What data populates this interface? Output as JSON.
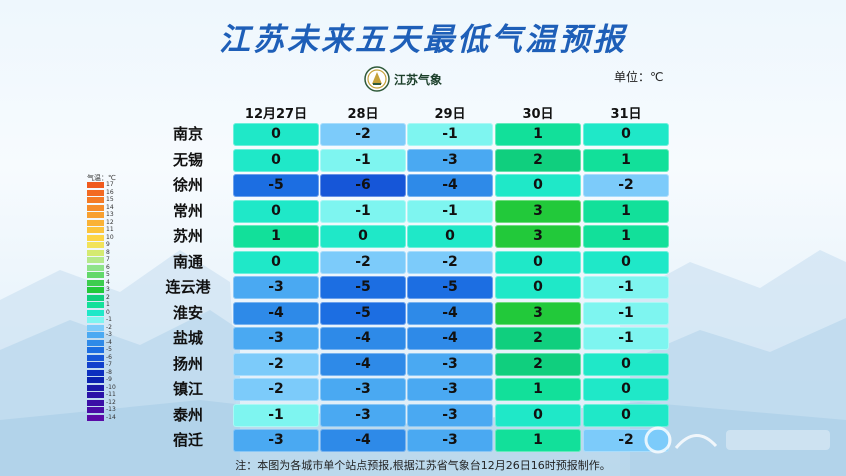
{
  "title": "江苏未来五天最低气温预报",
  "logo_text": "江苏气象",
  "unit_text": "单位：℃",
  "note": "注：本图为各城市单个站点预报,根据江苏省气象台12月26日16时预报制作。",
  "legend": {
    "title": "气温：℃",
    "items": [
      {
        "label": "17",
        "color": "#f05a1e"
      },
      {
        "label": "16",
        "color": "#f36a22"
      },
      {
        "label": "15",
        "color": "#f47b26"
      },
      {
        "label": "14",
        "color": "#f68d2b"
      },
      {
        "label": "13",
        "color": "#f8a030"
      },
      {
        "label": "12",
        "color": "#fab236"
      },
      {
        "label": "11",
        "color": "#fcc43c"
      },
      {
        "label": "10",
        "color": "#fdd546"
      },
      {
        "label": "9",
        "color": "#f2e35a"
      },
      {
        "label": "8",
        "color": "#d5ea70"
      },
      {
        "label": "7",
        "color": "#b5e98a"
      },
      {
        "label": "6",
        "color": "#8fe38a"
      },
      {
        "label": "5",
        "color": "#62d86a"
      },
      {
        "label": "4",
        "color": "#3ccd4e"
      },
      {
        "label": "3",
        "color": "#22c93a"
      },
      {
        "label": "2",
        "color": "#10cf7e"
      },
      {
        "label": "1",
        "color": "#12e09a"
      },
      {
        "label": "0",
        "color": "#1fe8c8"
      },
      {
        "label": "-1",
        "color": "#7ef5f0"
      },
      {
        "label": "-2",
        "color": "#7ccbfa"
      },
      {
        "label": "-3",
        "color": "#4aa9f2"
      },
      {
        "label": "-4",
        "color": "#2e8ae8"
      },
      {
        "label": "-5",
        "color": "#1c6ee2"
      },
      {
        "label": "-6",
        "color": "#1656d8"
      },
      {
        "label": "-7",
        "color": "#1140cc"
      },
      {
        "label": "-8",
        "color": "#0c2fbf"
      },
      {
        "label": "-9",
        "color": "#0a22b0"
      },
      {
        "label": "-10",
        "color": "#1a18a8"
      },
      {
        "label": "-11",
        "color": "#2a12a8"
      },
      {
        "label": "-12",
        "color": "#3a0ea6"
      },
      {
        "label": "-13",
        "color": "#4a0ca6"
      },
      {
        "label": "-14",
        "color": "#5a0aa6"
      }
    ]
  },
  "chart_data": {
    "type": "table",
    "title": "江苏未来五天最低气温预报",
    "unit": "℃",
    "columns": [
      "12月27日",
      "28日",
      "29日",
      "30日",
      "31日"
    ],
    "rows": [
      {
        "city": "南京",
        "values": [
          0,
          -2,
          -1,
          1,
          0
        ]
      },
      {
        "city": "无锡",
        "values": [
          0,
          -1,
          -3,
          2,
          1
        ]
      },
      {
        "city": "徐州",
        "values": [
          -5,
          -6,
          -4,
          0,
          -2
        ]
      },
      {
        "city": "常州",
        "values": [
          0,
          -1,
          -1,
          3,
          1
        ]
      },
      {
        "city": "苏州",
        "values": [
          1,
          0,
          0,
          3,
          1
        ]
      },
      {
        "city": "南通",
        "values": [
          0,
          -2,
          -2,
          0,
          0
        ]
      },
      {
        "city": "连云港",
        "values": [
          -3,
          -5,
          -5,
          0,
          -1
        ]
      },
      {
        "city": "淮安",
        "values": [
          -4,
          -5,
          -4,
          3,
          -1
        ]
      },
      {
        "city": "盐城",
        "values": [
          -3,
          -4,
          -4,
          2,
          -1
        ]
      },
      {
        "city": "扬州",
        "values": [
          -2,
          -4,
          -3,
          2,
          0
        ]
      },
      {
        "city": "镇江",
        "values": [
          -2,
          -3,
          -3,
          1,
          0
        ]
      },
      {
        "city": "泰州",
        "values": [
          -1,
          -3,
          -3,
          0,
          0
        ]
      },
      {
        "city": "宿迁",
        "values": [
          -3,
          -4,
          -3,
          1,
          -2
        ]
      }
    ]
  }
}
